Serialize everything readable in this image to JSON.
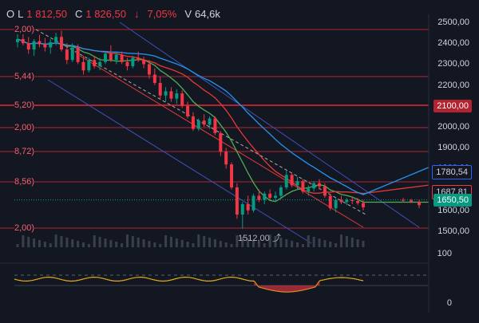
{
  "header": {
    "open_label": "O",
    "low_label": "L",
    "low_value": "1 812,50",
    "close_label": "C",
    "close_value": "1 826,50",
    "change_arrow": "↓",
    "change_value": "7,05%",
    "volume_label": "V",
    "volume_value": "64,6k"
  },
  "price_axis": [
    "2500,00",
    "2400,00",
    "2300,00",
    "2200,00",
    "2100,00",
    "2000,00",
    "1900,00",
    "1800,00",
    "1700,00",
    "1600,00",
    "1500,00"
  ],
  "indicator_axis": [
    "100",
    "0"
  ],
  "price_tags": [
    {
      "text": "2100,00",
      "bg": "#b2242f",
      "fg": "#ffffff"
    },
    {
      "text": "1780,54",
      "bg": "#131722",
      "fg": "#d1d4dc",
      "border": "#2962ff"
    },
    {
      "text": "1687,81",
      "bg": "#131722",
      "fg": "#d1d4dc",
      "border": "#f23645"
    },
    {
      "text": "1650,50",
      "bg": "#089981",
      "fg": "#ffffff"
    }
  ],
  "level_labels": [
    "2,00)",
    "5,44)",
    "5,20)",
    "2,00)",
    "8,72)",
    "8,56)",
    "2,00)"
  ],
  "low_annotation": "1512,00",
  "colors": {
    "up": "#089981",
    "down": "#f23645",
    "level_line": "#b2242f",
    "ma_green": "#4caf50",
    "ma_red": "#e53935",
    "ma_blue": "#2196f3",
    "channel": "#3f51b5",
    "osc": "#e6a817"
  },
  "chart_data": {
    "type": "candlestick",
    "y_range": [
      1500,
      2500
    ],
    "candles": [
      [
        2405,
        2445,
        2380,
        2420
      ],
      [
        2420,
        2470,
        2390,
        2400
      ],
      [
        2400,
        2430,
        2350,
        2370
      ],
      [
        2370,
        2420,
        2340,
        2410
      ],
      [
        2410,
        2440,
        2380,
        2395
      ],
      [
        2395,
        2425,
        2360,
        2380
      ],
      [
        2380,
        2420,
        2350,
        2405
      ],
      [
        2405,
        2450,
        2390,
        2430
      ],
      [
        2430,
        2460,
        2360,
        2370
      ],
      [
        2370,
        2400,
        2300,
        2320
      ],
      [
        2320,
        2400,
        2310,
        2380
      ],
      [
        2380,
        2395,
        2300,
        2310
      ],
      [
        2310,
        2340,
        2250,
        2270
      ],
      [
        2270,
        2330,
        2260,
        2320
      ],
      [
        2320,
        2340,
        2280,
        2290
      ],
      [
        2290,
        2330,
        2270,
        2310
      ],
      [
        2310,
        2360,
        2300,
        2350
      ],
      [
        2350,
        2390,
        2310,
        2320
      ],
      [
        2320,
        2360,
        2300,
        2345
      ],
      [
        2345,
        2360,
        2300,
        2310
      ],
      [
        2310,
        2330,
        2270,
        2290
      ],
      [
        2290,
        2340,
        2280,
        2330
      ],
      [
        2330,
        2360,
        2310,
        2320
      ],
      [
        2320,
        2335,
        2280,
        2300
      ],
      [
        2300,
        2320,
        2230,
        2250
      ],
      [
        2250,
        2280,
        2200,
        2210
      ],
      [
        2210,
        2240,
        2130,
        2150
      ],
      [
        2150,
        2190,
        2120,
        2170
      ],
      [
        2170,
        2190,
        2120,
        2135
      ],
      [
        2135,
        2180,
        2110,
        2160
      ],
      [
        2160,
        2175,
        2090,
        2100
      ],
      [
        2100,
        2120,
        2040,
        2050
      ],
      [
        2050,
        2070,
        1980,
        1990
      ],
      [
        1990,
        2040,
        1980,
        2030
      ],
      [
        2030,
        2060,
        2000,
        2010
      ],
      [
        2010,
        2050,
        1990,
        2040
      ],
      [
        2040,
        2050,
        1960,
        1970
      ],
      [
        1970,
        1980,
        1860,
        1880
      ],
      [
        1880,
        1900,
        1800,
        1820
      ],
      [
        1820,
        1830,
        1700,
        1710
      ],
      [
        1710,
        1730,
        1560,
        1580
      ],
      [
        1580,
        1640,
        1512,
        1630
      ],
      [
        1630,
        1670,
        1580,
        1600
      ],
      [
        1600,
        1680,
        1590,
        1670
      ],
      [
        1670,
        1700,
        1640,
        1650
      ],
      [
        1650,
        1690,
        1630,
        1680
      ],
      [
        1680,
        1700,
        1650,
        1660
      ],
      [
        1660,
        1690,
        1640,
        1670
      ],
      [
        1670,
        1720,
        1660,
        1710
      ],
      [
        1710,
        1790,
        1700,
        1770
      ],
      [
        1770,
        1780,
        1710,
        1720
      ],
      [
        1720,
        1760,
        1700,
        1740
      ],
      [
        1740,
        1750,
        1680,
        1690
      ],
      [
        1690,
        1720,
        1670,
        1705
      ],
      [
        1705,
        1740,
        1690,
        1730
      ],
      [
        1730,
        1750,
        1700,
        1715
      ],
      [
        1715,
        1730,
        1660,
        1670
      ],
      [
        1670,
        1680,
        1600,
        1610
      ],
      [
        1610,
        1660,
        1590,
        1650
      ],
      [
        1650,
        1670,
        1630,
        1640
      ],
      [
        1640,
        1660,
        1625,
        1650
      ],
      [
        1650,
        1665,
        1630,
        1645
      ],
      [
        1645,
        1660,
        1625,
        1635
      ],
      [
        1635,
        1650,
        1600,
        1615
      ]
    ]
  }
}
